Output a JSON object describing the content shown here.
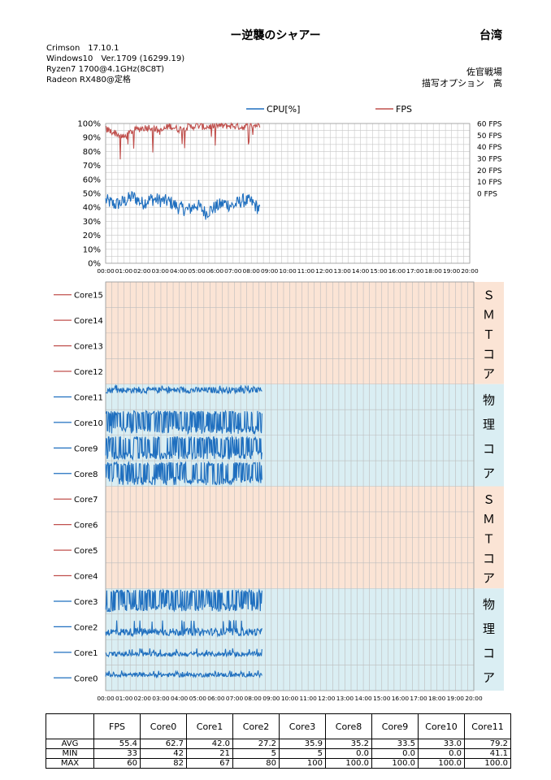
{
  "header": {
    "title": "ー逆襲のシャアー",
    "region": "台湾",
    "spec_lines": [
      "Crimson　17.10.1",
      "Windows10　Ver.1709 (16299.19)",
      "Ryzen7 1700@4.1GHz(8C8T)",
      "Radeon RX480@定格"
    ],
    "map_name": "佐官戦場",
    "render_option": "描写オプション　高"
  },
  "colors": {
    "cpu": "#1f6fbf",
    "fps": "#c0504d",
    "smt_bg": "#fbe4d5",
    "phys_bg": "#daeef3"
  },
  "chart_data": [
    {
      "type": "line",
      "legend": [
        "CPU[%]",
        "FPS"
      ],
      "legend_placement": "top",
      "x_ticks": [
        "00:00",
        "01:00",
        "02:00",
        "03:00",
        "04:00",
        "05:00",
        "06:00",
        "07:00",
        "08:00",
        "09:00",
        "10:00",
        "11:00",
        "12:00",
        "13:00",
        "14:00",
        "15:00",
        "16:00",
        "17:00",
        "18:00",
        "19:00",
        "20:00"
      ],
      "y_left_ticks": [
        "0%",
        "10%",
        "20%",
        "30%",
        "40%",
        "50%",
        "60%",
        "70%",
        "80%",
        "90%",
        "100%"
      ],
      "y_right_ticks": [
        "0 FPS",
        "10 FPS",
        "20 FPS",
        "30 FPS",
        "40 FPS",
        "50 FPS",
        "60 FPS"
      ],
      "ylim_left": [
        0,
        100
      ],
      "ylim_right": [
        -60,
        60
      ],
      "data_end_x": "08:30",
      "series": [
        {
          "name": "CPU[%]",
          "axis": "left",
          "x": [
            0,
            0.5,
            1,
            1.5,
            2,
            2.5,
            3,
            3.5,
            4,
            4.5,
            5,
            5.5,
            6,
            6.5,
            7,
            7.5,
            8,
            8.5
          ],
          "values": [
            45,
            42,
            44,
            48,
            43,
            46,
            45,
            44,
            40,
            38,
            42,
            36,
            40,
            43,
            41,
            45,
            44,
            38
          ]
        },
        {
          "name": "FPS",
          "axis": "right",
          "x": [
            0,
            0.5,
            1,
            1.5,
            2,
            2.5,
            3,
            3.5,
            4,
            4.5,
            5,
            5.5,
            6,
            6.5,
            7,
            7.5,
            8,
            8.5
          ],
          "values": [
            55,
            52,
            48,
            54,
            56,
            57,
            53,
            58,
            55,
            57,
            58,
            57,
            58,
            58,
            58,
            57,
            58,
            59
          ]
        }
      ]
    },
    {
      "type": "line",
      "x_ticks": [
        "00:00",
        "01:00",
        "02:00",
        "03:00",
        "04:00",
        "05:00",
        "06:00",
        "07:00",
        "08:00",
        "09:00",
        "10:00",
        "11:00",
        "12:00",
        "13:00",
        "14:00",
        "15:00",
        "16:00",
        "17:00",
        "18:00",
        "19:00",
        "20:00"
      ],
      "data_end_x": "08:30",
      "lane_labels": [
        "Core15",
        "Core14",
        "Core13",
        "Core12",
        "Core11",
        "Core10",
        "Core9",
        "Core8",
        "Core7",
        "Core6",
        "Core5",
        "Core4",
        "Core3",
        "Core2",
        "Core1",
        "Core0"
      ],
      "groups": [
        {
          "label": "ＳＭＴコア",
          "type": "smt",
          "cores": [
            "Core15",
            "Core14",
            "Core13",
            "Core12"
          ]
        },
        {
          "label": "物理コア",
          "type": "phys",
          "cores": [
            "Core11",
            "Core10",
            "Core9",
            "Core8"
          ]
        },
        {
          "label": "ＳＭＴコア",
          "type": "smt",
          "cores": [
            "Core7",
            "Core6",
            "Core5",
            "Core4"
          ]
        },
        {
          "label": "物理コア",
          "type": "phys",
          "cores": [
            "Core3",
            "Core2",
            "Core1",
            "Core0"
          ]
        }
      ],
      "series": [
        {
          "name": "Core11",
          "avg": 79.2,
          "min": 41.1,
          "max": 100.0
        },
        {
          "name": "Core10",
          "avg": 33.0,
          "min": 0.0,
          "max": 100.0
        },
        {
          "name": "Core9",
          "avg": 33.5,
          "min": 0.0,
          "max": 100.0
        },
        {
          "name": "Core8",
          "avg": 35.2,
          "min": 0.0,
          "max": 100.0
        },
        {
          "name": "Core3",
          "avg": 35.9,
          "min": 5,
          "max": 100
        },
        {
          "name": "Core2",
          "avg": 27.2,
          "min": 5,
          "max": 80
        },
        {
          "name": "Core1",
          "avg": 42.0,
          "min": 21,
          "max": 67
        },
        {
          "name": "Core0",
          "avg": 62.7,
          "min": 42,
          "max": 82
        }
      ]
    }
  ],
  "stats": {
    "columns": [
      "FPS",
      "Core0",
      "Core1",
      "Core2",
      "Core3",
      "Core8",
      "Core9",
      "Core10",
      "Core11"
    ],
    "rows": [
      {
        "label": "AVG",
        "values": [
          "55.4",
          "62.7",
          "42.0",
          "27.2",
          "35.9",
          "35.2",
          "33.5",
          "33.0",
          "79.2"
        ]
      },
      {
        "label": "MIN",
        "values": [
          "33",
          "42",
          "21",
          "5",
          "5",
          "0.0",
          "0.0",
          "0.0",
          "41.1"
        ]
      },
      {
        "label": "MAX",
        "values": [
          "60",
          "82",
          "67",
          "80",
          "100",
          "100.0",
          "100.0",
          "100.0",
          "100.0"
        ]
      }
    ]
  }
}
